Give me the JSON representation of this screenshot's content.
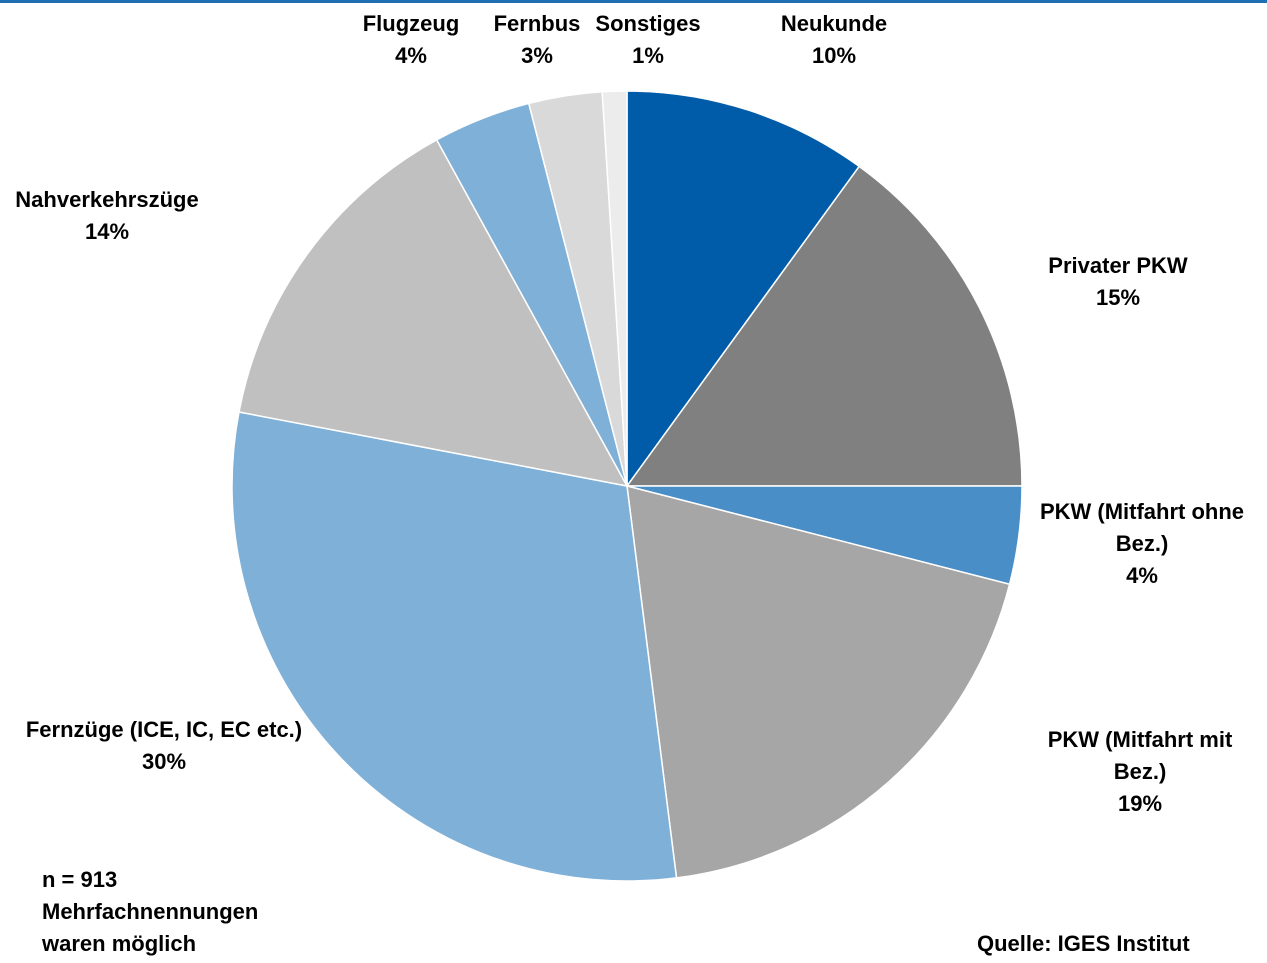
{
  "chart_data": {
    "type": "pie",
    "title": "",
    "slices": [
      {
        "name": "Neukunde",
        "value": 10,
        "label": "10%",
        "color": "#005ba8"
      },
      {
        "name": "Privater PKW",
        "value": 15,
        "label": "15%",
        "color": "#808080"
      },
      {
        "name": "PKW (Mitfahrt ohne Bez.)",
        "value": 4,
        "label": "4%",
        "color": "#4a8ec7"
      },
      {
        "name": "PKW (Mitfahrt mit Bez.)",
        "value": 19,
        "label": "19%",
        "color": "#a6a6a6"
      },
      {
        "name": "Fernzüge (ICE, IC, EC etc.)",
        "value": 30,
        "label": "30%",
        "color": "#7fb0d8"
      },
      {
        "name": "Nahverkehrszüge",
        "value": 14,
        "label": "14%",
        "color": "#c0c0c0"
      },
      {
        "name": "Flugzeug",
        "value": 4,
        "label": "4%",
        "color": "#7fb0d8"
      },
      {
        "name": "Fernbus",
        "value": 3,
        "label": "3%",
        "color": "#d9d9d9"
      },
      {
        "name": "Sonstiges",
        "value": 1,
        "label": "1%",
        "color": "#ececec"
      }
    ],
    "start_angle": "12 o'clock",
    "direction": "clockwise"
  },
  "notes": {
    "sample": "n = 913",
    "multi_line1": "Mehrfachnennungen",
    "multi_line2": "waren möglich",
    "source": "Quelle: IGES Institut"
  },
  "colors": {
    "accent_rule": "#1f6fb2"
  }
}
